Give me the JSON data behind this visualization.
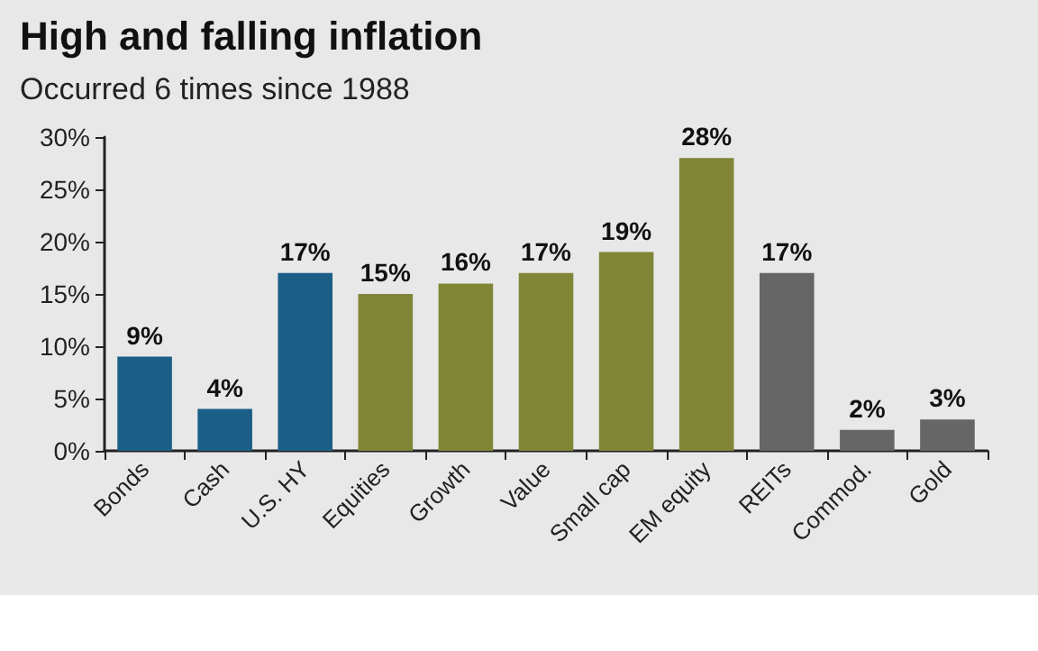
{
  "chart_data": {
    "type": "bar",
    "title": "High and falling inflation",
    "subtitle": "Occurred 6 times since 1988",
    "categories": [
      "Bonds",
      "Cash",
      "U.S. HY",
      "Equities",
      "Growth",
      "Value",
      "Small cap",
      "EM equity",
      "REITs",
      "Commod.",
      "Gold"
    ],
    "values": [
      9,
      4,
      17,
      15,
      16,
      17,
      19,
      28,
      17,
      2,
      3
    ],
    "value_labels": [
      "9%",
      "4%",
      "17%",
      "15%",
      "16%",
      "17%",
      "19%",
      "28%",
      "17%",
      "2%",
      "3%"
    ],
    "colors": [
      "#1b5f87",
      "#1b5f87",
      "#1b5f87",
      "#808636",
      "#808636",
      "#808636",
      "#808636",
      "#808636",
      "#666666",
      "#666666",
      "#666666"
    ],
    "ylim": [
      0,
      30
    ],
    "yticks": [
      {
        "value": 0,
        "label": "0%"
      },
      {
        "value": 5,
        "label": "5%"
      },
      {
        "value": 10,
        "label": "10%"
      },
      {
        "value": 15,
        "label": "15%"
      },
      {
        "value": 20,
        "label": "20%"
      },
      {
        "value": 25,
        "label": "25%"
      },
      {
        "value": 30,
        "label": "30%"
      }
    ],
    "grid": false
  }
}
